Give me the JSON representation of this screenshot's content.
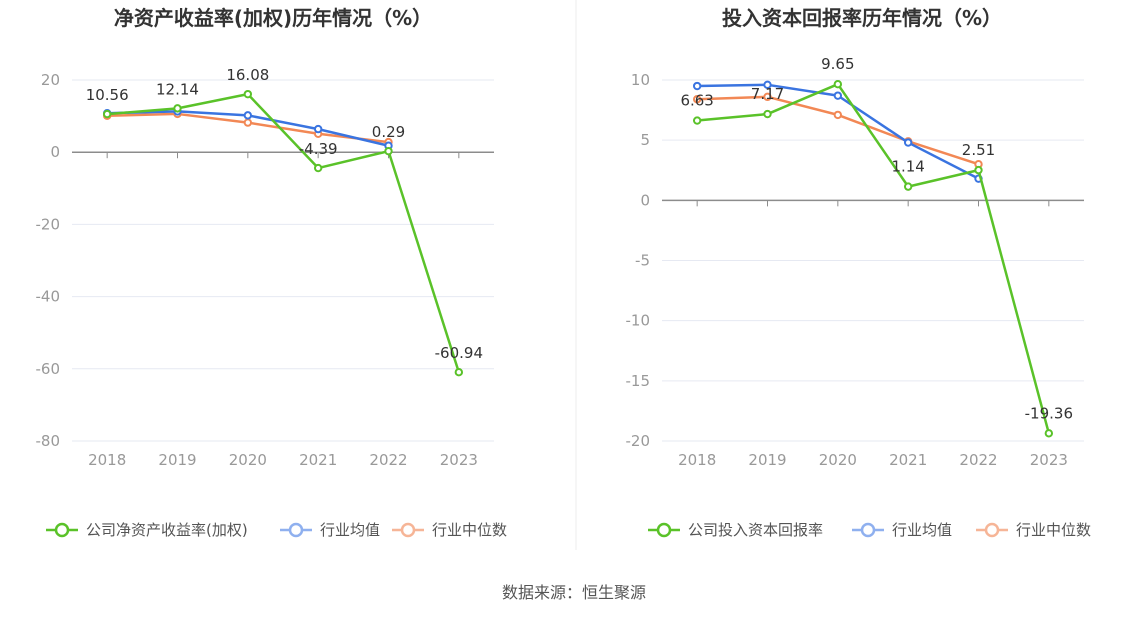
{
  "chart_data": [
    {
      "type": "line",
      "title": "净资产收益率(加权)历年情况（%）",
      "categories": [
        "2018",
        "2019",
        "2020",
        "2021",
        "2022",
        "2023"
      ],
      "ylim": [
        -80,
        20
      ],
      "yticks": [
        "20",
        "0",
        "-20",
        "-40",
        "-60",
        "-80"
      ],
      "yticks_values": [
        20,
        0,
        -20,
        -40,
        -60,
        -80
      ],
      "series": [
        {
          "name": "公司净资产收益率(加权)",
          "color": "#5ac229",
          "values": [
            10.56,
            12.14,
            16.08,
            -4.39,
            0.29,
            -60.94
          ],
          "labels": [
            "10.56",
            "12.14",
            "16.08",
            "-4.39",
            "0.29",
            "-60.94"
          ]
        },
        {
          "name": "行业均值",
          "color": "#3a74e0",
          "values": [
            10.8,
            11.3,
            10.2,
            6.4,
            1.8,
            null
          ]
        },
        {
          "name": "行业中位数",
          "color": "#f28855",
          "values": [
            10.1,
            10.6,
            8.2,
            5.1,
            2.8,
            null
          ]
        }
      ]
    },
    {
      "type": "line",
      "title": "投入资本回报率历年情况（%）",
      "categories": [
        "2018",
        "2019",
        "2020",
        "2021",
        "2022",
        "2023"
      ],
      "ylim": [
        -20,
        10
      ],
      "yticks": [
        "10",
        "5",
        "0",
        "-5",
        "-10",
        "-15",
        "-20"
      ],
      "yticks_values": [
        10,
        5,
        0,
        -5,
        -10,
        -15,
        -20
      ],
      "series": [
        {
          "name": "公司投入资本回报率",
          "color": "#5ac229",
          "values": [
            6.63,
            7.17,
            9.65,
            1.14,
            2.51,
            -19.36
          ],
          "labels": [
            "6.63",
            "7.17",
            "9.65",
            "1.14",
            "2.51",
            "-19.36"
          ]
        },
        {
          "name": "行业均值",
          "color": "#3a74e0",
          "values": [
            9.5,
            9.6,
            8.7,
            4.8,
            1.8,
            null
          ]
        },
        {
          "name": "行业中位数",
          "color": "#f28855",
          "values": [
            8.4,
            8.6,
            7.1,
            4.9,
            3.0,
            null
          ]
        }
      ]
    }
  ],
  "footer": {
    "source": "数据来源：恒生聚源"
  }
}
